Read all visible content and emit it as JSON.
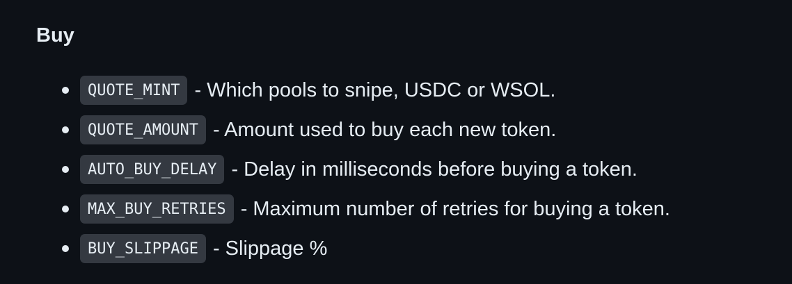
{
  "section": {
    "heading": "Buy"
  },
  "options": [
    {
      "name": "QUOTE_MINT",
      "description": "- Which pools to snipe, USDC or WSOL."
    },
    {
      "name": "QUOTE_AMOUNT",
      "description": "- Amount used to buy each new token."
    },
    {
      "name": "AUTO_BUY_DELAY",
      "description": "- Delay in milliseconds before buying a token."
    },
    {
      "name": "MAX_BUY_RETRIES",
      "description": "- Maximum number of retries for buying a token."
    },
    {
      "name": "BUY_SLIPPAGE",
      "description": "- Slippage %"
    }
  ],
  "colors": {
    "background": "#0d1117",
    "text": "#e6edf3",
    "code_background": "#343941"
  }
}
